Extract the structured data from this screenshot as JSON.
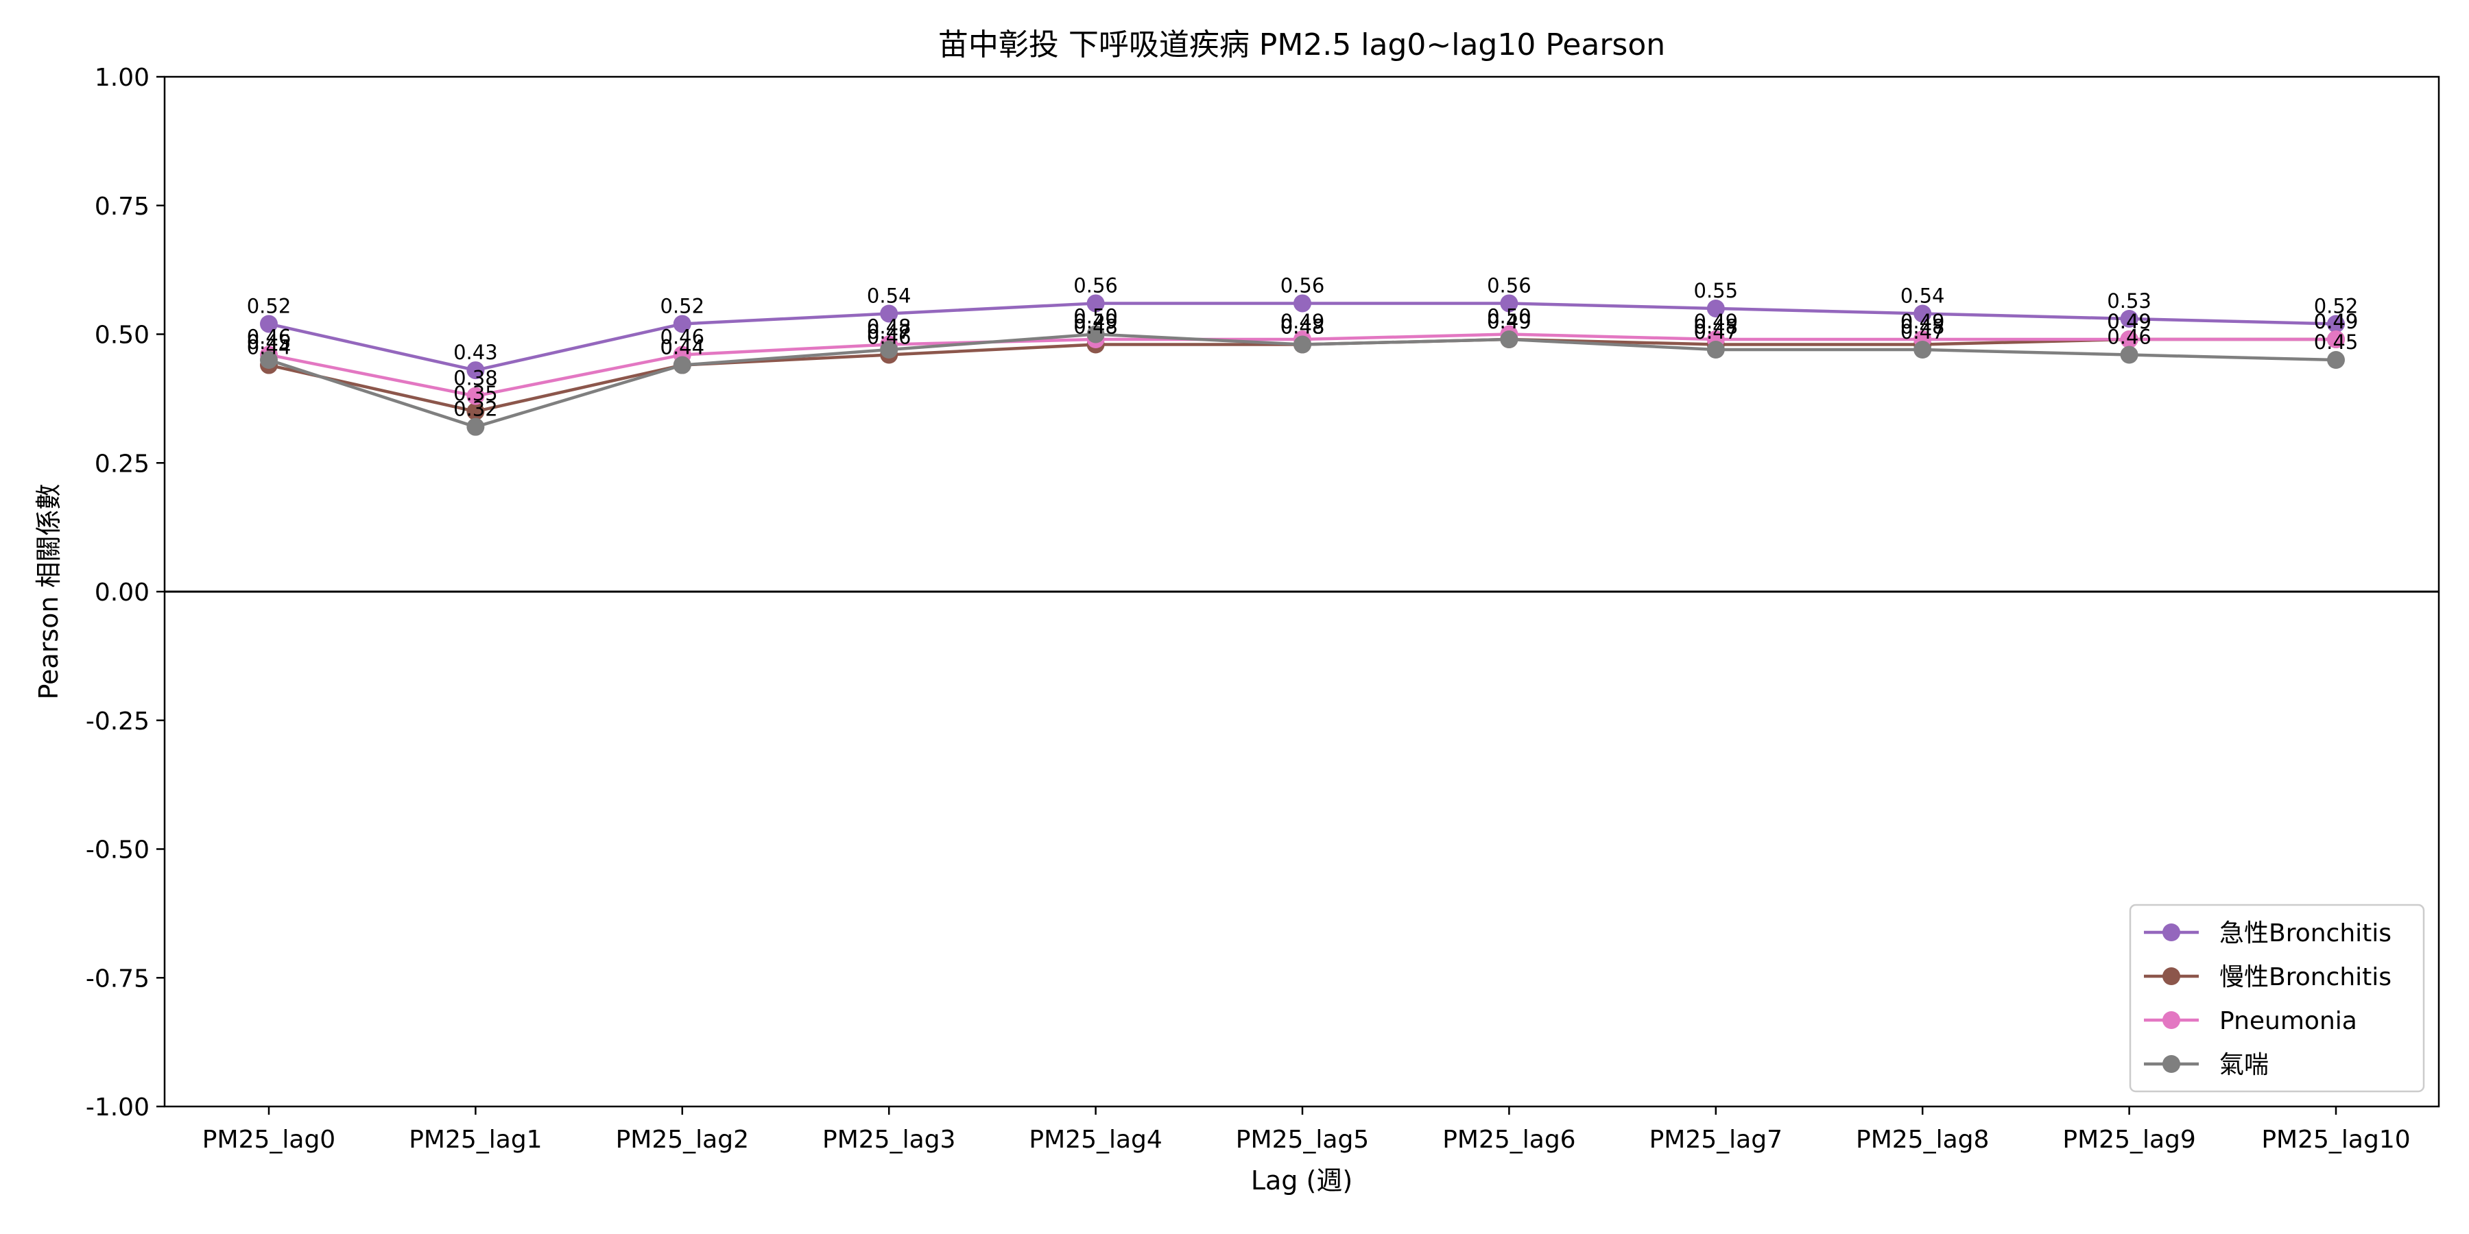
{
  "chart_data": {
    "type": "line",
    "title": "苗中彰投 下呼吸道疾病 PM2.5 lag0~lag10 Pearson",
    "xlabel": "Lag (週)",
    "ylabel": "Pearson 相關係數",
    "ylim": [
      -1.0,
      1.0
    ],
    "yticks": [
      "1.00",
      "0.75",
      "0.50",
      "0.25",
      "0.00",
      "-0.25",
      "-0.50",
      "-0.75",
      "-1.00"
    ],
    "categories": [
      "PM25_lag0",
      "PM25_lag1",
      "PM25_lag2",
      "PM25_lag3",
      "PM25_lag4",
      "PM25_lag5",
      "PM25_lag6",
      "PM25_lag7",
      "PM25_lag8",
      "PM25_lag9",
      "PM25_lag10"
    ],
    "legend_position": "lower-right",
    "series": [
      {
        "name": "急性Bronchitis",
        "color": "#9467bd",
        "values": [
          0.52,
          0.43,
          0.52,
          0.54,
          0.56,
          0.56,
          0.56,
          0.55,
          0.54,
          0.53,
          0.52
        ]
      },
      {
        "name": "慢性Bronchitis",
        "color": "#8c564b",
        "values": [
          0.44,
          0.35,
          0.44,
          0.46,
          0.48,
          0.48,
          0.49,
          0.48,
          0.48,
          0.49,
          0.49
        ]
      },
      {
        "name": "Pneumonia",
        "color": "#e377c2",
        "values": [
          0.46,
          0.38,
          0.46,
          0.48,
          0.49,
          0.49,
          0.5,
          0.49,
          0.49,
          0.49,
          0.49
        ]
      },
      {
        "name": "氣喘",
        "color": "#7f7f7f",
        "values": [
          0.45,
          0.32,
          0.44,
          0.47,
          0.5,
          0.48,
          0.49,
          0.47,
          0.47,
          0.46,
          0.45
        ]
      }
    ]
  }
}
